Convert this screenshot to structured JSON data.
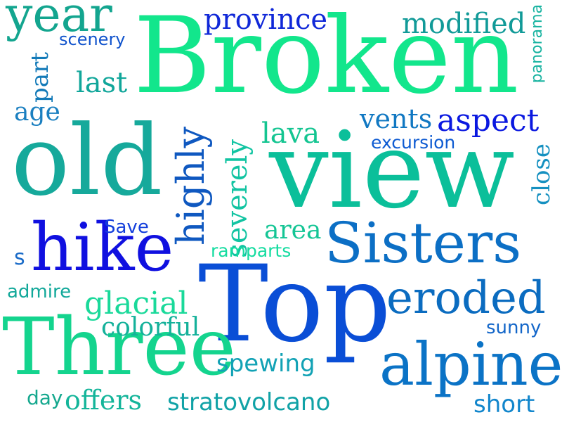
{
  "words": [
    {
      "text": "Broken",
      "color": "#12e68c"
    },
    {
      "text": "view",
      "color": "#0bbf9a"
    },
    {
      "text": "old",
      "color": "#16a99b"
    },
    {
      "text": "Top",
      "color": "#0a4ed6"
    },
    {
      "text": "Three",
      "color": "#14d48e"
    },
    {
      "text": "Sisters",
      "color": "#0c6fc5"
    },
    {
      "text": "alpine",
      "color": "#0b73c6"
    },
    {
      "text": "hike",
      "color": "#1010e0"
    },
    {
      "text": "highly",
      "color": "#0f58c0"
    },
    {
      "text": "eroded",
      "color": "#0b6cc0"
    },
    {
      "text": "year",
      "color": "#13a58f"
    },
    {
      "text": "province",
      "color": "#1028d8"
    },
    {
      "text": "modified",
      "color": "#119a98"
    },
    {
      "text": "scenery",
      "color": "#1053cc"
    },
    {
      "text": "panorama",
      "color": "#17b3a0"
    },
    {
      "text": "part",
      "color": "#137ab8"
    },
    {
      "text": "last",
      "color": "#10a69a"
    },
    {
      "text": "age",
      "color": "#1a7fc0"
    },
    {
      "text": "vents",
      "color": "#1178c2"
    },
    {
      "text": "aspect",
      "color": "#0a18e0"
    },
    {
      "text": "excursion",
      "color": "#0e5bd2"
    },
    {
      "text": "lava",
      "color": "#14c591"
    },
    {
      "text": "severely",
      "color": "#12c4a2"
    },
    {
      "text": "close",
      "color": "#1590c0"
    },
    {
      "text": "Save",
      "color": "#143fdc"
    },
    {
      "text": "area",
      "color": "#14c595"
    },
    {
      "text": "ramparts",
      "color": "#14dca0"
    },
    {
      "text": "s",
      "color": "#1a6bc8"
    },
    {
      "text": "admire",
      "color": "#12a89a"
    },
    {
      "text": "glacial",
      "color": "#1ad99a"
    },
    {
      "text": "colorful",
      "color": "#14b19a"
    },
    {
      "text": "sunny",
      "color": "#1366c9"
    },
    {
      "text": "spewing",
      "color": "#12a2b5"
    },
    {
      "text": "day",
      "color": "#15a88e"
    },
    {
      "text": "offers",
      "color": "#14b59a"
    },
    {
      "text": "stratovolcano",
      "color": "#10a2a6"
    },
    {
      "text": "short",
      "color": "#1286cc"
    }
  ]
}
